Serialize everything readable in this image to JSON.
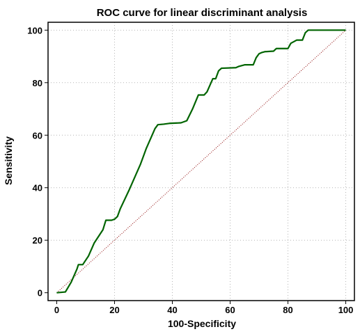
{
  "chart_data": {
    "type": "line",
    "title": "ROC curve for linear discriminant analysis",
    "xlabel": "100-Specificity",
    "ylabel": "Sensitivity",
    "xlim": [
      -3,
      103
    ],
    "ylim": [
      -3,
      103
    ],
    "xticks": [
      0,
      20,
      40,
      60,
      80,
      100
    ],
    "yticks": [
      0,
      20,
      40,
      60,
      80,
      100
    ],
    "grid": true,
    "colors": {
      "roc": "#006400",
      "reference": "#8b0000",
      "grid": "#b4b4b4"
    },
    "series": [
      {
        "values": [
          [
            0,
            0
          ],
          [
            3,
            0.3
          ],
          [
            5,
            4
          ],
          [
            7,
            9
          ],
          [
            7.5,
            10.7
          ],
          [
            9,
            10.7
          ],
          [
            11,
            14
          ],
          [
            13,
            19
          ],
          [
            16,
            24
          ],
          [
            17,
            27.6
          ],
          [
            19,
            27.6
          ],
          [
            20,
            28
          ],
          [
            21,
            29
          ],
          [
            22,
            32
          ],
          [
            25,
            39
          ],
          [
            27,
            44
          ],
          [
            29,
            49
          ],
          [
            30,
            52
          ],
          [
            31,
            55
          ],
          [
            33,
            60
          ],
          [
            34,
            62.5
          ],
          [
            35,
            64
          ],
          [
            37,
            64.2
          ],
          [
            39,
            64.5
          ],
          [
            43,
            64.7
          ],
          [
            45,
            65.5
          ],
          [
            47,
            70
          ],
          [
            49,
            75.3
          ],
          [
            51,
            75.3
          ],
          [
            52,
            76.5
          ],
          [
            54,
            81.5
          ],
          [
            55,
            81.5
          ],
          [
            56,
            84.5
          ],
          [
            57,
            85.5
          ],
          [
            62,
            85.7
          ],
          [
            63,
            86.2
          ],
          [
            65,
            86.8
          ],
          [
            68,
            86.8
          ],
          [
            69,
            89.5
          ],
          [
            70,
            91
          ],
          [
            71,
            91.5
          ],
          [
            72,
            91.8
          ],
          [
            75,
            92
          ],
          [
            76,
            93
          ],
          [
            80,
            93
          ],
          [
            81,
            95
          ],
          [
            83,
            96.2
          ],
          [
            85,
            96.2
          ],
          [
            86,
            99
          ],
          [
            87,
            100
          ],
          [
            100,
            100
          ]
        ]
      },
      {
        "values": [
          [
            0,
            0
          ],
          [
            100,
            100
          ]
        ]
      }
    ]
  }
}
